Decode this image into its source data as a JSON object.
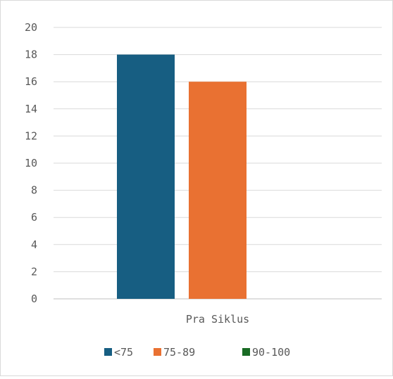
{
  "chart_data": {
    "type": "bar",
    "categories": [
      "Pra Siklus"
    ],
    "series": [
      {
        "name": "<75",
        "values": [
          18
        ],
        "color": "#175e82"
      },
      {
        "name": "75-89",
        "values": [
          16
        ],
        "color": "#e97132"
      },
      {
        "name": "90-100",
        "values": [
          0
        ],
        "color": "#196b24"
      }
    ],
    "ylim": [
      0,
      20
    ],
    "yticks": [
      "0",
      "2",
      "4",
      "6",
      "8",
      "10",
      "12",
      "14",
      "16",
      "18",
      "20"
    ],
    "grid": true,
    "legend_position": "bottom"
  }
}
